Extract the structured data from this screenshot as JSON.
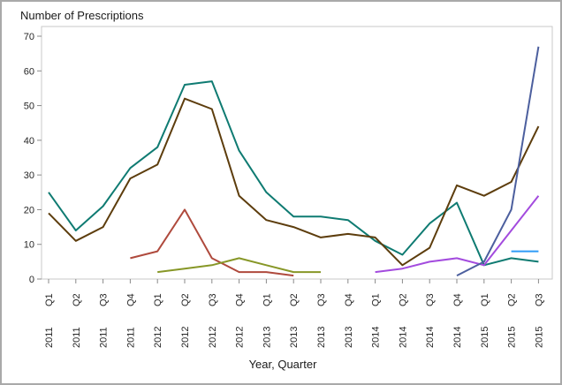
{
  "chart": {
    "title": "Number of Prescriptions",
    "xlabel": "Year, Quarter"
  },
  "chart_data": {
    "type": "line",
    "title": "Number of Prescriptions",
    "xlabel": "Year, Quarter",
    "ylabel": "Number of Prescriptions",
    "ylim": [
      0,
      70
    ],
    "yticks": [
      0,
      10,
      20,
      30,
      40,
      50,
      60,
      70
    ],
    "grid": false,
    "legend": "none",
    "x_quarters": [
      "Q1",
      "Q2",
      "Q3",
      "Q4",
      "Q1",
      "Q2",
      "Q3",
      "Q4",
      "Q1",
      "Q2",
      "Q3",
      "Q4",
      "Q1",
      "Q2",
      "Q3",
      "Q4",
      "Q1",
      "Q2",
      "Q3"
    ],
    "x_years": [
      "2011",
      "2011",
      "2011",
      "2011",
      "2012",
      "2012",
      "2012",
      "2012",
      "2013",
      "2013",
      "2013",
      "2013",
      "2014",
      "2014",
      "2014",
      "2014",
      "2015",
      "2015",
      "2015"
    ],
    "series": [
      {
        "name": "teal",
        "color": "#0F7B72",
        "values": [
          25,
          14,
          21,
          32,
          38,
          56,
          57,
          37,
          25,
          18,
          18,
          17,
          11,
          7,
          16,
          22,
          4,
          6,
          5
        ]
      },
      {
        "name": "brown",
        "color": "#5D3D0D",
        "values": [
          19,
          11,
          15,
          29,
          33,
          52,
          49,
          24,
          17,
          15,
          12,
          13,
          12,
          4,
          9,
          27,
          24,
          28,
          44
        ]
      },
      {
        "name": "red",
        "color": "#AF4A3D",
        "values": [
          null,
          null,
          null,
          6,
          8,
          20,
          6,
          2,
          2,
          1,
          null,
          null,
          null,
          null,
          null,
          null,
          null,
          null,
          null
        ]
      },
      {
        "name": "olive",
        "color": "#879727",
        "values": [
          null,
          null,
          null,
          null,
          2,
          3,
          4,
          6,
          4,
          2,
          2,
          null,
          null,
          null,
          null,
          null,
          null,
          null,
          null
        ]
      },
      {
        "name": "purple",
        "color": "#A34BDE",
        "values": [
          null,
          null,
          null,
          null,
          null,
          null,
          null,
          null,
          null,
          null,
          null,
          null,
          2,
          3,
          5,
          6,
          4,
          14,
          24
        ]
      },
      {
        "name": "slate-blue",
        "color": "#4C5F9E",
        "values": [
          null,
          null,
          null,
          null,
          null,
          null,
          null,
          null,
          null,
          null,
          null,
          null,
          null,
          null,
          null,
          1,
          5,
          20,
          67
        ]
      },
      {
        "name": "sky-blue",
        "color": "#2E9BF7",
        "values": [
          null,
          null,
          null,
          null,
          null,
          null,
          null,
          null,
          null,
          null,
          null,
          null,
          null,
          null,
          null,
          null,
          null,
          8,
          8
        ]
      }
    ]
  }
}
